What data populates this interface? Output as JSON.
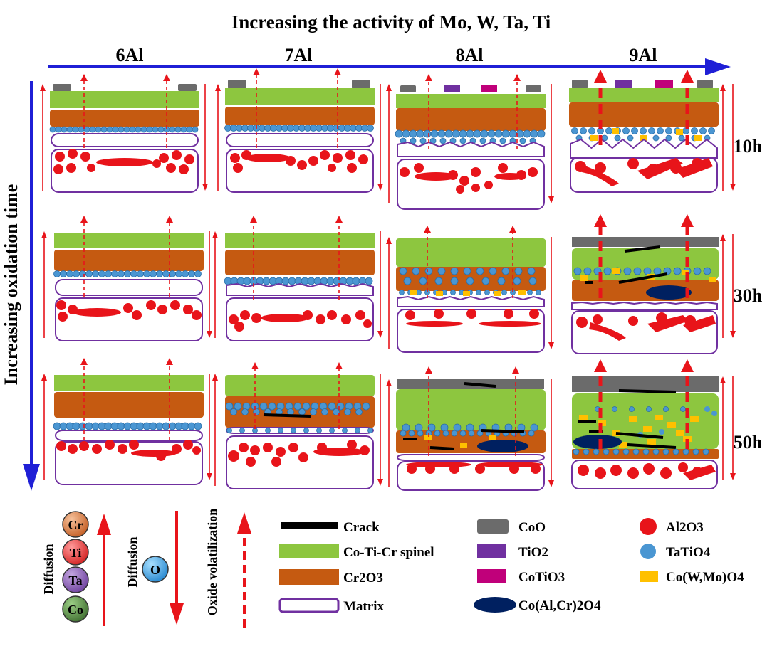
{
  "header": {
    "title": "Increasing the activity of Mo, W, Ta, Ti",
    "columns": [
      "6Al",
      "7Al",
      "8Al",
      "9Al"
    ]
  },
  "side": {
    "axis_label": "Increasing oxidation time",
    "rows": [
      "10h",
      "30h",
      "50h"
    ]
  },
  "legend": {
    "diffusion_label": "Diffusion",
    "volatilization_label": "Oxide volatilization",
    "outward_species": [
      "Cr",
      "Ti",
      "Ta",
      "Co"
    ],
    "inward_species": "O",
    "items": {
      "crack": "Crack",
      "spinel": "Co-Ti-Cr spinel",
      "cr2o3": "Cr2O3",
      "matrix": "Matrix",
      "coo": "CoO",
      "tio2": "TiO2",
      "cotio3": "CoTiO3",
      "coalcr": "Co(Al,Cr)2O4",
      "al2o3": "Al2O3",
      "tatio4": "TaTiO4",
      "cowmo": "Co(W,Mo)O4"
    }
  },
  "colors": {
    "spinel": "#8dc63f",
    "cr2o3": "#c55a11",
    "matrix": "#7030a0",
    "coo": "#6b6b6b",
    "tio2": "#7030a0",
    "cotio3": "#c0007a",
    "coalcr": "#002060",
    "al2o3": "#e8141a",
    "tatio4": "#4a96d2",
    "cowmo": "#ffc000",
    "crack": "#000000",
    "arrow_time": "#1f1fd6",
    "arrow_diff": "#e8141a",
    "cr_ball": "#d06a2c",
    "ti_ball": "#e02525",
    "ta_ball": "#7a4ca8",
    "co_ball": "#4a7a3a",
    "o_ball": "#2d8fd5"
  }
}
